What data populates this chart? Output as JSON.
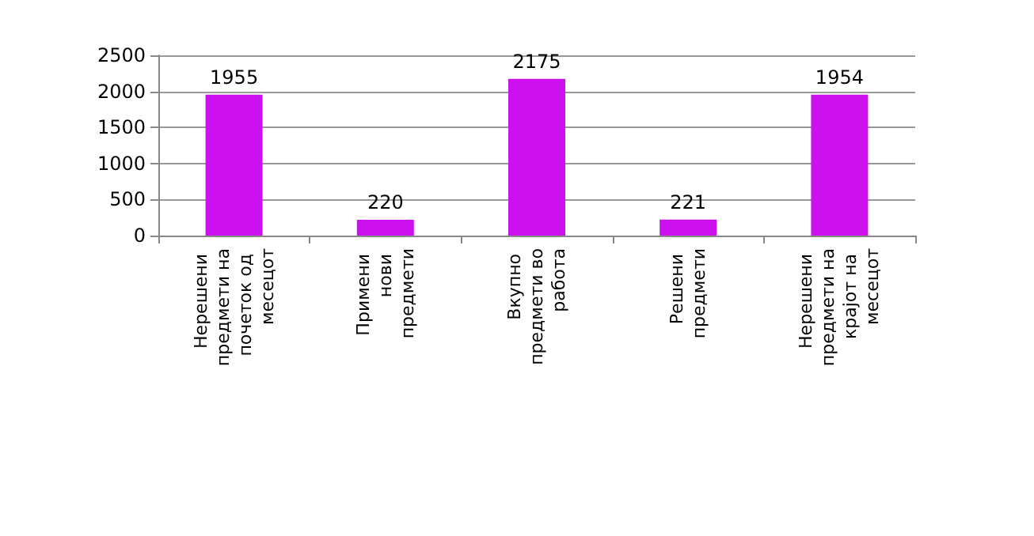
{
  "chart_data": {
    "type": "bar",
    "categories": [
      "Нерешени предмети на почеток од месецот",
      "Примени нови предмети",
      "Вкупно предмети во работа",
      "Решени предмети",
      "Нерешени предмети на крајот на месецот"
    ],
    "values": [
      1955,
      220,
      2175,
      221,
      1954
    ],
    "color": "#cc11ee",
    "ylim": [
      0,
      2500
    ],
    "yticks": [
      0,
      500,
      1000,
      1500,
      2000,
      2500
    ],
    "grid": "y",
    "data_labels": true
  }
}
